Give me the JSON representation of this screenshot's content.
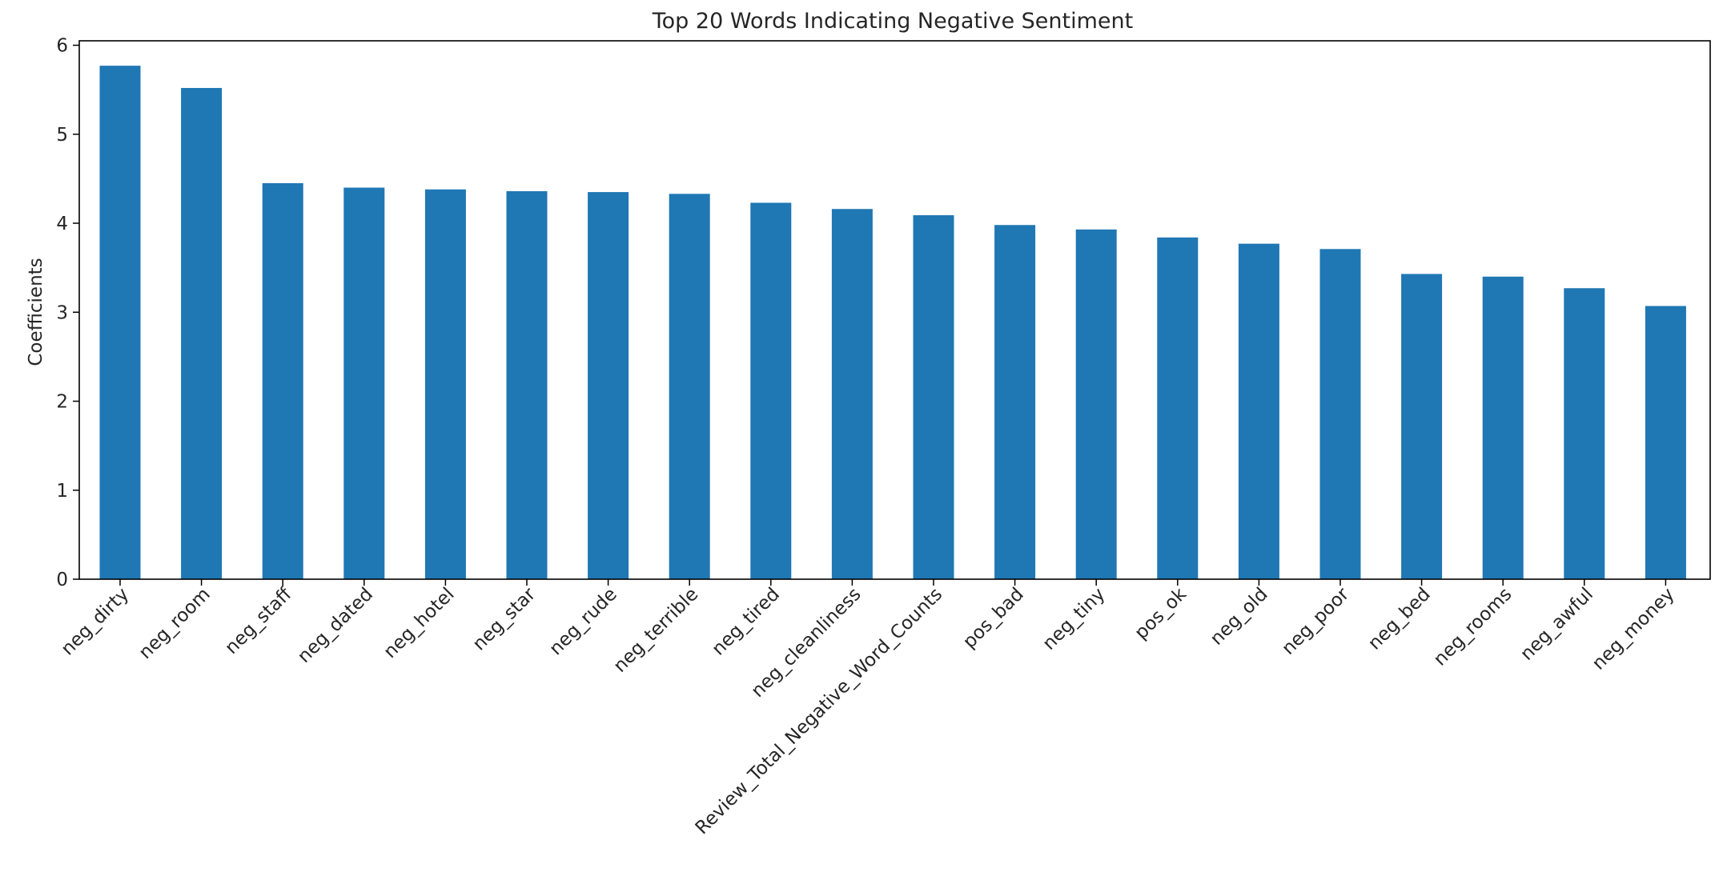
{
  "chart_data": {
    "type": "bar",
    "title": "Top 20 Words Indicating Negative Sentiment",
    "xlabel": "",
    "ylabel": "Coefficients",
    "ylim": [
      0,
      6.05
    ],
    "yticks": [
      "0",
      "1",
      "2",
      "3",
      "4",
      "5",
      "6"
    ],
    "bar_color": "#1f77b4",
    "grid": false,
    "categories": [
      "neg_dirty",
      "neg_room",
      "neg_staff",
      "neg_dated",
      "neg_hotel",
      "neg_star",
      "neg_rude",
      "neg_terrible",
      "neg_tired",
      "neg_cleanliness",
      "Review_Total_Negative_Word_Counts",
      "pos_bad",
      "neg_tiny",
      "pos_ok",
      "neg_old",
      "neg_poor",
      "neg_bed",
      "neg_rooms",
      "neg_awful",
      "neg_money"
    ],
    "values": [
      5.77,
      5.52,
      4.45,
      4.4,
      4.38,
      4.36,
      4.35,
      4.33,
      4.23,
      4.16,
      4.09,
      3.98,
      3.93,
      3.84,
      3.77,
      3.71,
      3.43,
      3.4,
      3.27,
      3.07
    ]
  }
}
